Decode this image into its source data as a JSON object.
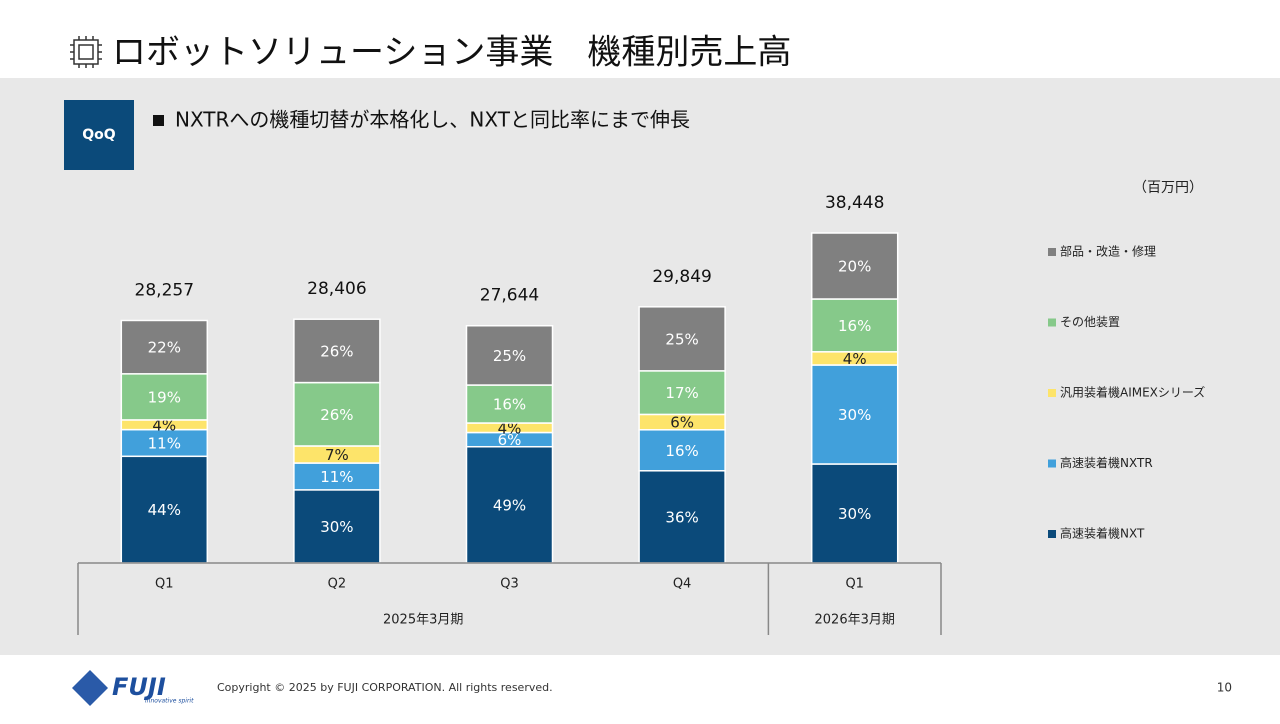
{
  "header": {
    "title": "ロボットソリューション事業　機種別売上高"
  },
  "badge": "QoQ",
  "bullet": "NXTRへの機種切替が本格化し、NXTと同比率にまで伸長",
  "footer": {
    "logo": "FUJI",
    "tagline": "innovative spirit",
    "copyright": "Copyright © 2025 by FUJI CORPORATION. All rights reserved.",
    "page": "10"
  },
  "chart_data": {
    "type": "bar",
    "stacked": true,
    "unit_label": "（百万円）",
    "categories": [
      "Q1",
      "Q2",
      "Q3",
      "Q4",
      "Q1"
    ],
    "groups": [
      {
        "label": "2025年3月期",
        "count": 4
      },
      {
        "label": "2026年3月期",
        "count": 1
      }
    ],
    "totals": {
      "values": [
        28257,
        28406,
        27644,
        29849,
        38448
      ],
      "value_labels": [
        "28,257",
        "28,406",
        "27,644",
        "29,849",
        "38,448"
      ]
    },
    "series": [
      {
        "name": "高速装着機NXT",
        "color": "#0b4a7a",
        "values": [
          44,
          30,
          49,
          36,
          30
        ],
        "value_labels": [
          "44%",
          "30%",
          "49%",
          "36%",
          "30%"
        ]
      },
      {
        "name": "高速装着機NXTR",
        "color": "#41a0db",
        "values": [
          11,
          11,
          6,
          16,
          30
        ],
        "value_labels": [
          "11%",
          "11%",
          "6%",
          "16%",
          "30%"
        ]
      },
      {
        "name": "汎用装着機AIMEXシリーズ",
        "color": "#fde46a",
        "values": [
          4,
          7,
          4,
          6,
          4
        ],
        "value_labels": [
          "4%",
          "7%",
          "4%",
          "6%",
          "4%"
        ]
      },
      {
        "name": "その他装置",
        "color": "#86c98a",
        "values": [
          19,
          26,
          16,
          17,
          16
        ],
        "value_labels": [
          "19%",
          "26%",
          "16%",
          "17%",
          "16%"
        ]
      },
      {
        "name": "部品・改造・修理",
        "color": "#808080",
        "values": [
          22,
          26,
          25,
          25,
          20
        ],
        "value_labels": [
          "22%",
          "26%",
          "25%",
          "25%",
          "20%"
        ]
      }
    ]
  }
}
